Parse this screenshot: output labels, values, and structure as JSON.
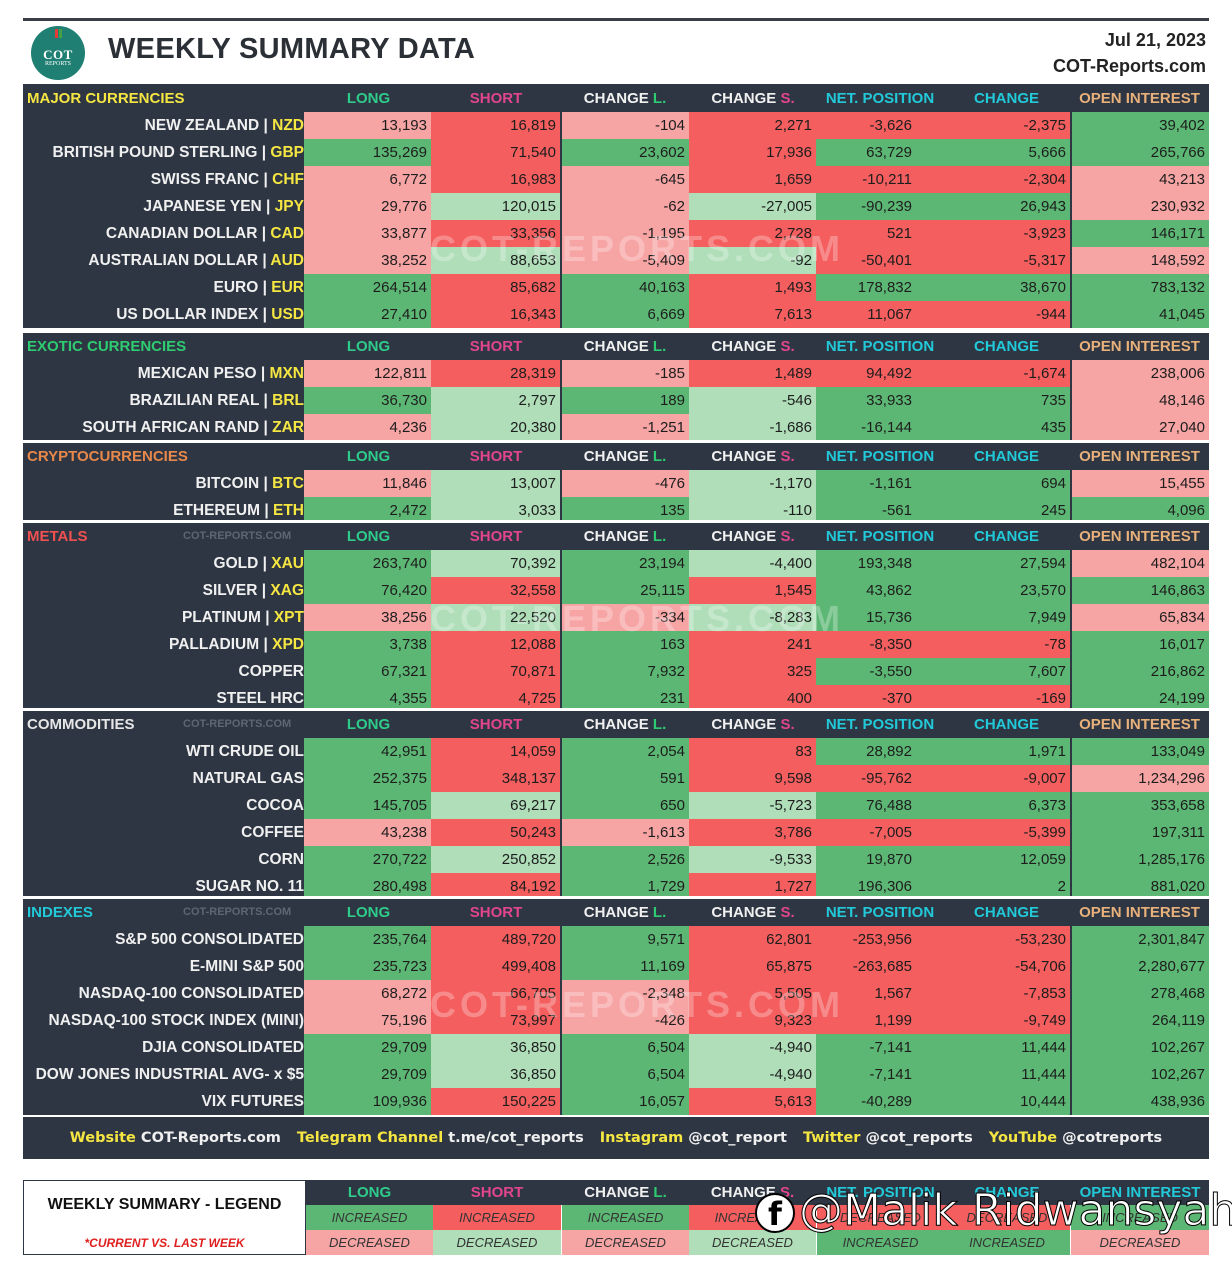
{
  "header": {
    "title": "WEEKLY SUMMARY DATA",
    "date": "Jul 21, 2023",
    "site": "COT-Reports.com",
    "logo_text_1": "COT",
    "logo_text_2": "REPORTS"
  },
  "columns": {
    "long": "LONG",
    "short": "SHORT",
    "change_l_prefix": "CHANGE ",
    "change_l_suffix": "L.",
    "change_s_prefix": "CHANGE ",
    "change_s_suffix": "S.",
    "net_position": "NET. POSITION",
    "change": "CHANGE",
    "open_interest": "OPEN INTEREST"
  },
  "watermark": "COT-REPORTS.COM",
  "colors": {
    "dark_green": "#5cb774",
    "red": "#f45e5e",
    "light_red": "#f7a4a4",
    "light_green": "#afdeb9",
    "panel": "#2e3643"
  },
  "sections": [
    {
      "name": "MAJOR CURRENCIES",
      "color": "#f5e642",
      "rows": [
        {
          "name": "NEW ZEALAND",
          "code": "NZD",
          "long": "13,193",
          "short": "16,819",
          "chl": "-104",
          "chs": "2,271",
          "dir": "down",
          "net": "-3,626",
          "chg": "-2,375",
          "oi": "39,402",
          "c": [
            "LR",
            "R",
            "LR",
            "R",
            "R",
            "R",
            "G"
          ]
        },
        {
          "name": "BRITISH POUND STERLING",
          "code": "GBP",
          "long": "135,269",
          "short": "71,540",
          "chl": "23,602",
          "chs": "17,936",
          "dir": "up",
          "net": "63,729",
          "chg": "5,666",
          "oi": "265,766",
          "c": [
            "G",
            "R",
            "G",
            "R",
            "G",
            "G",
            "G"
          ]
        },
        {
          "name": "SWISS FRANC",
          "code": "CHF",
          "long": "6,772",
          "short": "16,983",
          "chl": "-645",
          "chs": "1,659",
          "dir": "down",
          "net": "-10,211",
          "chg": "-2,304",
          "oi": "43,213",
          "c": [
            "LR",
            "R",
            "LR",
            "R",
            "R",
            "R",
            "LR"
          ]
        },
        {
          "name": "JAPANESE YEN",
          "code": "JPY",
          "long": "29,776",
          "short": "120,015",
          "chl": "-62",
          "chs": "-27,005",
          "dir": "up",
          "net": "-90,239",
          "chg": "26,943",
          "oi": "230,932",
          "c": [
            "LR",
            "LG",
            "LR",
            "LG",
            "G",
            "G",
            "LR"
          ]
        },
        {
          "name": "CANADIAN DOLLAR",
          "code": "CAD",
          "long": "33,877",
          "short": "33,356",
          "chl": "-1,195",
          "chs": "2,728",
          "dir": "down",
          "net": "521",
          "chg": "-3,923",
          "oi": "146,171",
          "c": [
            "LR",
            "R",
            "LR",
            "R",
            "R",
            "R",
            "G"
          ]
        },
        {
          "name": "AUSTRALIAN DOLLAR",
          "code": "AUD",
          "long": "38,252",
          "short": "88,653",
          "chl": "-5,409",
          "chs": "-92",
          "dir": "down",
          "net": "-50,401",
          "chg": "-5,317",
          "oi": "148,592",
          "c": [
            "LR",
            "LG",
            "LR",
            "LG",
            "R",
            "R",
            "LR"
          ]
        },
        {
          "name": "EURO",
          "code": "EUR",
          "long": "264,514",
          "short": "85,682",
          "chl": "40,163",
          "chs": "1,493",
          "dir": "up",
          "net": "178,832",
          "chg": "38,670",
          "oi": "783,132",
          "c": [
            "G",
            "R",
            "G",
            "R",
            "G",
            "G",
            "G"
          ]
        },
        {
          "name": "US DOLLAR INDEX",
          "code": "USD",
          "long": "27,410",
          "short": "16,343",
          "chl": "6,669",
          "chs": "7,613",
          "dir": "down",
          "net": "11,067",
          "chg": "-944",
          "oi": "41,045",
          "c": [
            "G",
            "R",
            "G",
            "R",
            "R",
            "R",
            "G"
          ]
        }
      ]
    },
    {
      "name": "EXOTIC CURRENCIES",
      "color": "#2ecc71",
      "rows": [
        {
          "name": "MEXICAN PESO",
          "code": "MXN",
          "long": "122,811",
          "short": "28,319",
          "chl": "-185",
          "chs": "1,489",
          "dir": "down",
          "net": "94,492",
          "chg": "-1,674",
          "oi": "238,006",
          "c": [
            "LR",
            "R",
            "LR",
            "R",
            "R",
            "R",
            "LR"
          ]
        },
        {
          "name": "BRAZILIAN REAL",
          "code": "BRL",
          "long": "36,730",
          "short": "2,797",
          "chl": "189",
          "chs": "-546",
          "dir": "up",
          "net": "33,933",
          "chg": "735",
          "oi": "48,146",
          "c": [
            "G",
            "LG",
            "G",
            "LG",
            "G",
            "G",
            "LR"
          ]
        },
        {
          "name": "SOUTH AFRICAN RAND",
          "code": "ZAR",
          "long": "4,236",
          "short": "20,380",
          "chl": "-1,251",
          "chs": "-1,686",
          "dir": "up",
          "net": "-16,144",
          "chg": "435",
          "oi": "27,040",
          "c": [
            "LR",
            "LG",
            "LR",
            "LG",
            "G",
            "G",
            "LR"
          ]
        }
      ]
    },
    {
      "name": "CRYPTOCURRENCIES",
      "color": "#e8884a",
      "rows": [
        {
          "name": "BITCOIN",
          "code": "BTC",
          "long": "11,846",
          "short": "13,007",
          "chl": "-476",
          "chs": "-1,170",
          "dir": "up",
          "net": "-1,161",
          "chg": "694",
          "oi": "15,455",
          "c": [
            "LR",
            "LG",
            "LR",
            "LG",
            "G",
            "G",
            "LR"
          ]
        },
        {
          "name": "ETHEREUM",
          "code": "ETH",
          "long": "2,472",
          "short": "3,033",
          "chl": "135",
          "chs": "-110",
          "dir": "up",
          "net": "-561",
          "chg": "245",
          "oi": "4,096",
          "c": [
            "G",
            "LG",
            "G",
            "LG",
            "G",
            "G",
            "G"
          ]
        }
      ]
    },
    {
      "name": "METALS",
      "color": "#f05050",
      "watermark": "COT-REPORTS.COM",
      "rows": [
        {
          "name": "GOLD",
          "code": "XAU",
          "long": "263,740",
          "short": "70,392",
          "chl": "23,194",
          "chs": "-4,400",
          "dir": "up",
          "net": "193,348",
          "chg": "27,594",
          "oi": "482,104",
          "c": [
            "G",
            "LG",
            "G",
            "LG",
            "G",
            "G",
            "LR"
          ]
        },
        {
          "name": "SILVER",
          "code": "XAG",
          "long": "76,420",
          "short": "32,558",
          "chl": "25,115",
          "chs": "1,545",
          "dir": "up",
          "net": "43,862",
          "chg": "23,570",
          "oi": "146,863",
          "c": [
            "G",
            "R",
            "G",
            "R",
            "G",
            "G",
            "G"
          ]
        },
        {
          "name": "PLATINUM",
          "code": "XPT",
          "long": "38,256",
          "short": "22,520",
          "chl": "-334",
          "chs": "-8,283",
          "dir": "up",
          "net": "15,736",
          "chg": "7,949",
          "oi": "65,834",
          "c": [
            "LR",
            "LG",
            "LR",
            "LG",
            "G",
            "G",
            "LR"
          ]
        },
        {
          "name": "PALLADIUM",
          "code": "XPD",
          "long": "3,738",
          "short": "12,088",
          "chl": "163",
          "chs": "241",
          "dir": "down",
          "net": "-8,350",
          "chg": "-78",
          "oi": "16,017",
          "c": [
            "G",
            "R",
            "G",
            "R",
            "R",
            "R",
            "G"
          ]
        },
        {
          "name": "COPPER",
          "code": "",
          "long": "67,321",
          "short": "70,871",
          "chl": "7,932",
          "chs": "325",
          "dir": "up",
          "net": "-3,550",
          "chg": "7,607",
          "oi": "216,862",
          "c": [
            "G",
            "R",
            "G",
            "R",
            "G",
            "G",
            "G"
          ]
        },
        {
          "name": "STEEL HRC",
          "code": "",
          "long": "4,355",
          "short": "4,725",
          "chl": "231",
          "chs": "400",
          "dir": "down",
          "net": "-370",
          "chg": "-169",
          "oi": "24,199",
          "c": [
            "G",
            "R",
            "G",
            "R",
            "R",
            "R",
            "G"
          ]
        }
      ]
    },
    {
      "name": "COMMODITIES",
      "color": "#e6e6e6",
      "watermark": "COT-REPORTS.COM",
      "rows": [
        {
          "name": "WTI CRUDE OIL",
          "code": "",
          "long": "42,951",
          "short": "14,059",
          "chl": "2,054",
          "chs": "83",
          "dir": "up",
          "net": "28,892",
          "chg": "1,971",
          "oi": "133,049",
          "c": [
            "G",
            "R",
            "G",
            "R",
            "G",
            "G",
            "G"
          ]
        },
        {
          "name": "NATURAL GAS",
          "code": "",
          "long": "252,375",
          "short": "348,137",
          "chl": "591",
          "chs": "9,598",
          "dir": "down",
          "net": "-95,762",
          "chg": "-9,007",
          "oi": "1,234,296",
          "c": [
            "G",
            "R",
            "G",
            "R",
            "R",
            "R",
            "LR"
          ]
        },
        {
          "name": "COCOA",
          "code": "",
          "long": "145,705",
          "short": "69,217",
          "chl": "650",
          "chs": "-5,723",
          "dir": "up",
          "net": "76,488",
          "chg": "6,373",
          "oi": "353,658",
          "c": [
            "G",
            "LG",
            "G",
            "LG",
            "G",
            "G",
            "G"
          ]
        },
        {
          "name": "COFFEE",
          "code": "",
          "long": "43,238",
          "short": "50,243",
          "chl": "-1,613",
          "chs": "3,786",
          "dir": "down",
          "net": "-7,005",
          "chg": "-5,399",
          "oi": "197,311",
          "c": [
            "LR",
            "R",
            "LR",
            "R",
            "R",
            "R",
            "G"
          ]
        },
        {
          "name": "CORN",
          "code": "",
          "long": "270,722",
          "short": "250,852",
          "chl": "2,526",
          "chs": "-9,533",
          "dir": "up",
          "net": "19,870",
          "chg": "12,059",
          "oi": "1,285,176",
          "c": [
            "G",
            "LG",
            "G",
            "LG",
            "G",
            "G",
            "G"
          ]
        },
        {
          "name": "SUGAR NO. 11",
          "code": "",
          "long": "280,498",
          "short": "84,192",
          "chl": "1,729",
          "chs": "1,727",
          "dir": "up",
          "net": "196,306",
          "chg": "2",
          "oi": "881,020",
          "c": [
            "G",
            "R",
            "G",
            "R",
            "G",
            "G",
            "G"
          ]
        }
      ]
    },
    {
      "name": "INDEXES",
      "color": "#22c9d8",
      "watermark": "COT-REPORTS.COM",
      "rows": [
        {
          "name": "S&P 500 CONSOLIDATED",
          "code": "",
          "long": "235,764",
          "short": "489,720",
          "chl": "9,571",
          "chs": "62,801",
          "dir": "down",
          "net": "-253,956",
          "chg": "-53,230",
          "oi": "2,301,847",
          "c": [
            "G",
            "R",
            "G",
            "R",
            "R",
            "R",
            "G"
          ]
        },
        {
          "name": "E-MINI S&P 500",
          "code": "",
          "long": "235,723",
          "short": "499,408",
          "chl": "11,169",
          "chs": "65,875",
          "dir": "down",
          "net": "-263,685",
          "chg": "-54,706",
          "oi": "2,280,677",
          "c": [
            "G",
            "R",
            "G",
            "R",
            "R",
            "R",
            "G"
          ]
        },
        {
          "name": "NASDAQ-100 CONSOLIDATED",
          "code": "",
          "long": "68,272",
          "short": "66,705",
          "chl": "-2,348",
          "chs": "5,505",
          "dir": "down",
          "net": "1,567",
          "chg": "-7,853",
          "oi": "278,468",
          "c": [
            "LR",
            "R",
            "LR",
            "R",
            "R",
            "R",
            "G"
          ]
        },
        {
          "name": "NASDAQ-100 STOCK INDEX (MINI)",
          "code": "",
          "long": "75,196",
          "short": "73,997",
          "chl": "-426",
          "chs": "9,323",
          "dir": "down",
          "net": "1,199",
          "chg": "-9,749",
          "oi": "264,119",
          "c": [
            "LR",
            "R",
            "LR",
            "R",
            "R",
            "R",
            "G"
          ]
        },
        {
          "name": "DJIA CONSOLIDATED",
          "code": "",
          "long": "29,709",
          "short": "36,850",
          "chl": "6,504",
          "chs": "-4,940",
          "dir": "up",
          "net": "-7,141",
          "chg": "11,444",
          "oi": "102,267",
          "c": [
            "G",
            "LG",
            "G",
            "LG",
            "G",
            "G",
            "G"
          ]
        },
        {
          "name": "DOW JONES INDUSTRIAL AVG- x $5",
          "code": "",
          "long": "29,709",
          "short": "36,850",
          "chl": "6,504",
          "chs": "-4,940",
          "dir": "up",
          "net": "-7,141",
          "chg": "11,444",
          "oi": "102,267",
          "c": [
            "G",
            "LG",
            "G",
            "LG",
            "G",
            "G",
            "G"
          ]
        },
        {
          "name": "VIX FUTURES",
          "code": "",
          "long": "109,936",
          "short": "150,225",
          "chl": "16,057",
          "chs": "5,613",
          "dir": "up",
          "net": "-40,289",
          "chg": "10,444",
          "oi": "438,936",
          "c": [
            "G",
            "R",
            "G",
            "R",
            "G",
            "G",
            "G"
          ]
        }
      ]
    }
  ],
  "footer": [
    {
      "key": "Website",
      "value": "COT-Reports.com"
    },
    {
      "key": "Telegram Channel",
      "value": "t.me/cot_reports"
    },
    {
      "key": "Instagram",
      "value": "@cot_report"
    },
    {
      "key": "Twitter",
      "value": "@cot_reports"
    },
    {
      "key": "YouTube",
      "value": "@cotreports"
    }
  ],
  "legend": {
    "title": "WEEKLY SUMMARY - LEGEND",
    "subtitle": "*CURRENT VS. LAST WEEK",
    "increased_row": [
      {
        "text": "INCREASED",
        "c": "G"
      },
      {
        "text": "INCREASED",
        "c": "R"
      },
      {
        "text": "INCREASED",
        "c": "G"
      },
      {
        "text": "INCREASED",
        "c": "R"
      },
      {
        "text": "DECREASED",
        "c": "R"
      },
      {
        "text": "DECREASED",
        "c": "R"
      },
      {
        "text": "INCREASED",
        "c": "G"
      }
    ],
    "decreased_row": [
      {
        "text": "DECREASED",
        "c": "LR"
      },
      {
        "text": "DECREASED",
        "c": "LG"
      },
      {
        "text": "DECREASED",
        "c": "LR"
      },
      {
        "text": "DECREASED",
        "c": "LG"
      },
      {
        "text": "INCREASED",
        "c": "G"
      },
      {
        "text": "INCREASED",
        "c": "G"
      },
      {
        "text": "DECREASED",
        "c": "LR"
      }
    ]
  },
  "overlay_watermark": "@Malik Ridwansyah"
}
